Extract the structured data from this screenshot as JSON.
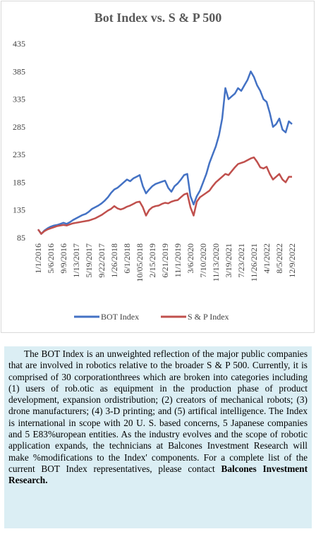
{
  "chart_data": {
    "type": "line",
    "title": "Bot Index vs. S & P 500",
    "categories": [
      "1/1/2016",
      null,
      null,
      null,
      "5/6/2016",
      null,
      null,
      null,
      "9/9/2016",
      null,
      null,
      null,
      "1/13/2017",
      null,
      null,
      null,
      "5/19/2017",
      null,
      null,
      null,
      "9/22/2017",
      null,
      null,
      null,
      "1/26/2018",
      null,
      null,
      null,
      "6/1/2018",
      null,
      null,
      null,
      "10/05/2018",
      null,
      null,
      null,
      "2/15/2019",
      null,
      null,
      null,
      "6/21/2019",
      null,
      null,
      null,
      "11/1/2019",
      null,
      null,
      null,
      "3/6/2020",
      null,
      null,
      null,
      "7/10/2020",
      null,
      null,
      null,
      "11/13/2020",
      null,
      null,
      null,
      "3/19/2021",
      null,
      null,
      null,
      "7/23/2021",
      null,
      null,
      null,
      "11/26/2021",
      null,
      null,
      null,
      "4/1/2022",
      null,
      null,
      null,
      "8/5/2022",
      null,
      null,
      null,
      "12/9/2022"
    ],
    "series": [
      {
        "name": "BOT Index",
        "color": "#4472c4",
        "values": [
          100,
          92,
          98,
          102,
          105,
          107,
          108,
          110,
          112,
          110,
          113,
          117,
          120,
          123,
          126,
          128,
          132,
          137,
          140,
          143,
          147,
          152,
          158,
          166,
          172,
          175,
          180,
          185,
          190,
          187,
          192,
          195,
          198,
          178,
          165,
          172,
          178,
          182,
          184,
          186,
          188,
          175,
          168,
          178,
          183,
          190,
          198,
          200,
          160,
          145,
          160,
          170,
          185,
          200,
          220,
          235,
          250,
          270,
          300,
          355,
          335,
          340,
          345,
          355,
          350,
          360,
          370,
          385,
          375,
          360,
          350,
          335,
          330,
          310,
          285,
          290,
          300,
          280,
          275,
          295,
          290
        ]
      },
      {
        "name": "S & P Index",
        "color": "#c0504d",
        "values": [
          100,
          92,
          97,
          100,
          102,
          104,
          106,
          107,
          108,
          107,
          109,
          111,
          112,
          113,
          114,
          115,
          116,
          118,
          120,
          123,
          126,
          130,
          134,
          137,
          142,
          138,
          136,
          138,
          141,
          143,
          146,
          149,
          150,
          140,
          125,
          135,
          140,
          142,
          143,
          146,
          148,
          147,
          150,
          152,
          153,
          158,
          163,
          165,
          140,
          125,
          150,
          158,
          162,
          166,
          170,
          178,
          185,
          190,
          195,
          200,
          198,
          205,
          212,
          218,
          220,
          222,
          225,
          228,
          230,
          222,
          212,
          210,
          213,
          200,
          190,
          195,
          200,
          190,
          185,
          195,
          195
        ]
      }
    ],
    "ylim": [
      85,
      435
    ],
    "yticks": [
      85,
      135,
      185,
      235,
      285,
      335,
      385,
      435
    ],
    "grid": false,
    "legend": "bottom"
  },
  "note": {
    "text": "The BOT Index is an unweighted reflection of the major public companies that are involved in robotics relative to the broader S & P 500. Currently, it is comprised of 30 corporationthrees which are broken into categories including (1) users of rob.otic as equipment in the production phase of product development, expansion ordistribution; (2) creators of mechanical robots; (3) drone manufacturers; (4) 3-D printing; and (5) artifical intelligence. The Index is international in scope with 20 U. S. based concerns, 5 Japanese companies and 5 E83%uropean entities. As the industry evolves and the scope of robotic application expands, the technicians at Balcones Investment Research will make %modifications to the Index' components. For a  complete list of the current BOT Index representatives, please contact",
    "bold": "Balcones Investment Research."
  }
}
